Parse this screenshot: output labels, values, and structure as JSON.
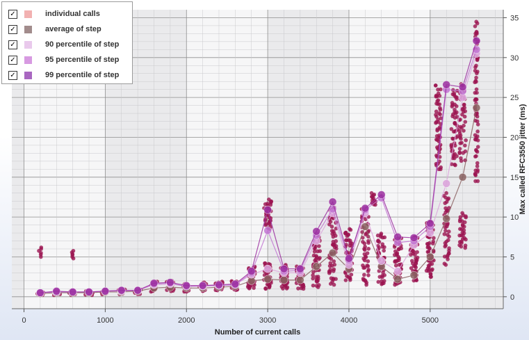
{
  "chart_data": {
    "type": "scatter",
    "xlabel": "Number of current calls",
    "ylabel": "Max called RFC3550 jitter (ms)",
    "xlim": [
      -150,
      5900
    ],
    "ylim": [
      -1.5,
      36
    ],
    "x_ticks": [
      0,
      1000,
      2000,
      3000,
      4000,
      5000
    ],
    "y_ticks": [
      0,
      5,
      10,
      15,
      20,
      25,
      30,
      35
    ],
    "grid": true,
    "legend_position": "top-left",
    "colors": {
      "individual": "#9b1450",
      "average": "#8a6262",
      "p90": "#dca5dc",
      "p95": "#c277d2",
      "p99": "#9b2fa0"
    },
    "legend": [
      {
        "key": "individual",
        "label": "individual calls",
        "checked": true,
        "swatch": "#f2b1b1"
      },
      {
        "key": "average",
        "label": "average of step",
        "checked": true,
        "swatch": "#a28c8c"
      },
      {
        "key": "p90",
        "label": "90 percentile of step",
        "checked": true,
        "swatch": "#e9c9ec"
      },
      {
        "key": "p95",
        "label": "95 percentile of step",
        "checked": true,
        "swatch": "#d79ae1"
      },
      {
        "key": "p99",
        "label": "99 percentile of step",
        "checked": true,
        "swatch": "#a967c1"
      }
    ],
    "individual_clusters": [
      {
        "x": 200,
        "spread": 25,
        "lo": 5.0,
        "hi": 6.2,
        "n": 6
      },
      {
        "x": 200,
        "spread": 45,
        "lo": 0.2,
        "hi": 0.6,
        "n": 10
      },
      {
        "x": 400,
        "spread": 45,
        "lo": 0.2,
        "hi": 0.7,
        "n": 10
      },
      {
        "x": 600,
        "spread": 20,
        "lo": 4.8,
        "hi": 5.8,
        "n": 6
      },
      {
        "x": 600,
        "spread": 45,
        "lo": 0.2,
        "hi": 0.7,
        "n": 10
      },
      {
        "x": 800,
        "spread": 45,
        "lo": 0.2,
        "hi": 0.7,
        "n": 10
      },
      {
        "x": 1000,
        "spread": 45,
        "lo": 0.3,
        "hi": 0.8,
        "n": 10
      },
      {
        "x": 1200,
        "spread": 45,
        "lo": 0.3,
        "hi": 0.9,
        "n": 12
      },
      {
        "x": 1400,
        "spread": 45,
        "lo": 0.3,
        "hi": 0.9,
        "n": 12
      },
      {
        "x": 1600,
        "spread": 45,
        "lo": 0.6,
        "hi": 1.9,
        "n": 18
      },
      {
        "x": 1800,
        "spread": 45,
        "lo": 0.7,
        "hi": 2.0,
        "n": 18
      },
      {
        "x": 2000,
        "spread": 45,
        "lo": 0.6,
        "hi": 1.6,
        "n": 16
      },
      {
        "x": 2200,
        "spread": 45,
        "lo": 0.7,
        "hi": 1.8,
        "n": 16
      },
      {
        "x": 2400,
        "spread": 45,
        "lo": 0.8,
        "hi": 1.9,
        "n": 18
      },
      {
        "x": 2600,
        "spread": 45,
        "lo": 0.8,
        "hi": 2.0,
        "n": 18
      },
      {
        "x": 2800,
        "spread": 45,
        "lo": 1.0,
        "hi": 3.8,
        "n": 40
      },
      {
        "x": 3000,
        "spread": 45,
        "lo": 1.0,
        "hi": 4.2,
        "n": 40
      },
      {
        "x": 3000,
        "spread": 45,
        "lo": 8.5,
        "hi": 12.2,
        "n": 30
      },
      {
        "x": 3200,
        "spread": 45,
        "lo": 1.0,
        "hi": 4.0,
        "n": 40
      },
      {
        "x": 3400,
        "spread": 45,
        "lo": 1.0,
        "hi": 3.8,
        "n": 40
      },
      {
        "x": 3600,
        "spread": 45,
        "lo": 1.2,
        "hi": 7.5,
        "n": 45
      },
      {
        "x": 3800,
        "spread": 45,
        "lo": 1.5,
        "hi": 11.2,
        "n": 55
      },
      {
        "x": 4000,
        "spread": 45,
        "lo": 2.0,
        "hi": 8.5,
        "n": 50
      },
      {
        "x": 4200,
        "spread": 45,
        "lo": 1.5,
        "hi": 11.0,
        "n": 50
      },
      {
        "x": 4300,
        "spread": 30,
        "lo": 11.5,
        "hi": 13.0,
        "n": 12
      },
      {
        "x": 4400,
        "spread": 45,
        "lo": 1.5,
        "hi": 8.0,
        "n": 45
      },
      {
        "x": 4600,
        "spread": 45,
        "lo": 1.5,
        "hi": 7.5,
        "n": 45
      },
      {
        "x": 4800,
        "spread": 45,
        "lo": 2.0,
        "hi": 7.5,
        "n": 45
      },
      {
        "x": 5000,
        "spread": 45,
        "lo": 2.5,
        "hi": 9.5,
        "n": 55
      },
      {
        "x": 5100,
        "spread": 35,
        "lo": 16.0,
        "hi": 26.5,
        "n": 55
      },
      {
        "x": 5200,
        "spread": 35,
        "lo": 4.0,
        "hi": 13.0,
        "n": 40
      },
      {
        "x": 5300,
        "spread": 40,
        "lo": 16.5,
        "hi": 26.0,
        "n": 50
      },
      {
        "x": 5400,
        "spread": 40,
        "lo": 6.0,
        "hi": 10.5,
        "n": 30
      },
      {
        "x": 5400,
        "spread": 40,
        "lo": 17.0,
        "hi": 27.0,
        "n": 45
      },
      {
        "x": 5570,
        "spread": 20,
        "lo": 14.5,
        "hi": 34.5,
        "n": 70
      }
    ],
    "series": [
      {
        "key": "average",
        "name": "average of step",
        "x": [
          200,
          400,
          600,
          800,
          1000,
          1200,
          1400,
          1600,
          1800,
          2000,
          2200,
          2400,
          2600,
          2800,
          3000,
          3200,
          3400,
          3600,
          3800,
          4000,
          4200,
          4400,
          4600,
          4800,
          5000,
          5200,
          5400,
          5570
        ],
        "y": [
          0.4,
          0.5,
          0.5,
          0.5,
          0.6,
          0.6,
          0.7,
          1.1,
          1.2,
          1.1,
          1.1,
          1.2,
          1.3,
          2.0,
          2.2,
          2.1,
          2.1,
          3.8,
          5.5,
          3.5,
          8.8,
          3.8,
          2.2,
          2.7,
          5.0,
          9.8,
          15.0,
          23.7
        ]
      },
      {
        "key": "p90",
        "name": "90 percentile of step",
        "x": [
          200,
          400,
          600,
          800,
          1000,
          1200,
          1400,
          1600,
          1800,
          2000,
          2200,
          2400,
          2600,
          2800,
          3000,
          3200,
          3400,
          3600,
          3800,
          4000,
          4200,
          4400,
          4600,
          4800,
          5000,
          5200,
          5400,
          5570
        ],
        "y": [
          0.5,
          0.6,
          0.6,
          0.6,
          0.7,
          0.7,
          0.8,
          1.5,
          1.6,
          1.3,
          1.3,
          1.4,
          1.5,
          2.8,
          3.5,
          3.0,
          3.0,
          7.0,
          10.5,
          4.0,
          10.5,
          4.5,
          3.2,
          6.5,
          8.0,
          14.2,
          25.0,
          30.5
        ]
      },
      {
        "key": "p95",
        "name": "95 percentile of step",
        "x": [
          200,
          400,
          600,
          800,
          1000,
          1200,
          1400,
          1600,
          1800,
          2000,
          2200,
          2400,
          2600,
          2800,
          3000,
          3200,
          3400,
          3600,
          3800,
          4000,
          4200,
          4400,
          4600,
          4800,
          5000,
          5200,
          5400,
          5570
        ],
        "y": [
          0.5,
          0.6,
          0.6,
          0.6,
          0.7,
          0.8,
          0.8,
          1.6,
          1.7,
          1.3,
          1.4,
          1.4,
          1.5,
          3.0,
          8.3,
          3.2,
          3.3,
          7.7,
          11.0,
          4.6,
          10.9,
          12.4,
          6.8,
          7.0,
          8.8,
          26.0,
          25.8,
          31.0
        ]
      },
      {
        "key": "p99",
        "name": "99 percentile of step",
        "x": [
          200,
          400,
          600,
          800,
          1000,
          1200,
          1400,
          1600,
          1800,
          2000,
          2200,
          2400,
          2600,
          2800,
          3000,
          3200,
          3400,
          3600,
          3800,
          4000,
          4200,
          4400,
          4600,
          4800,
          5000,
          5200,
          5400,
          5570
        ],
        "y": [
          0.5,
          0.7,
          0.6,
          0.6,
          0.7,
          0.8,
          0.8,
          1.7,
          1.8,
          1.4,
          1.4,
          1.5,
          1.6,
          3.2,
          10.9,
          3.5,
          3.5,
          8.2,
          11.9,
          4.8,
          11.1,
          12.8,
          7.5,
          7.4,
          9.2,
          26.6,
          26.3,
          32.1
        ]
      }
    ]
  }
}
